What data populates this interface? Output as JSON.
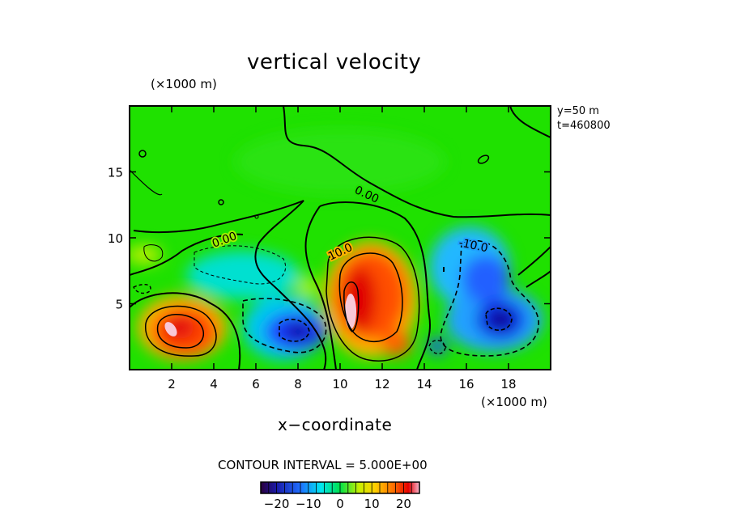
{
  "chart_data": {
    "type": "contour",
    "title": "vertical velocity",
    "xlabel": "x−coordinate",
    "x_unit": "(×1000 m)",
    "y_unit": "(×1000 m)",
    "xlim": [
      0,
      20
    ],
    "ylim": [
      0,
      20
    ],
    "x_ticks": [
      2,
      4,
      6,
      8,
      10,
      12,
      14,
      16,
      18
    ],
    "y_ticks": [
      5,
      10,
      15
    ],
    "info_lines": [
      "y=50 m",
      "t=460800"
    ],
    "contour_interval_text": "CONTOUR INTERVAL = 5.000E+00",
    "contour_labels": [
      {
        "text": "0.00",
        "x": 11.2,
        "y": 14.2
      },
      {
        "text": "0.00",
        "x": 4.8,
        "y": 9.6
      },
      {
        "text": "10.0",
        "x": 10.2,
        "y": 8.7
      },
      {
        "text": "-10.0",
        "x": 16.5,
        "y": 9.4
      }
    ],
    "colorbar": {
      "range": [
        -25,
        25
      ],
      "ticks": [
        -20,
        -10,
        0,
        10,
        20
      ],
      "tick_labels": [
        "−20",
        "−10",
        "0",
        "10",
        "20"
      ]
    },
    "features": [
      {
        "sign": "positive",
        "x": 2.5,
        "y": 3.2,
        "peak": 22
      },
      {
        "sign": "positive",
        "x": 10.8,
        "y": 5.0,
        "peak": 24
      },
      {
        "sign": "positive",
        "x": 12.6,
        "y": 1.8,
        "peak": 15
      },
      {
        "sign": "negative",
        "x": 7.9,
        "y": 3.0,
        "peak": -16
      },
      {
        "sign": "negative",
        "x": 17.4,
        "y": 3.8,
        "peak": -20
      },
      {
        "sign": "negative",
        "x": 16.6,
        "y": 7.0,
        "peak": -13
      }
    ]
  }
}
